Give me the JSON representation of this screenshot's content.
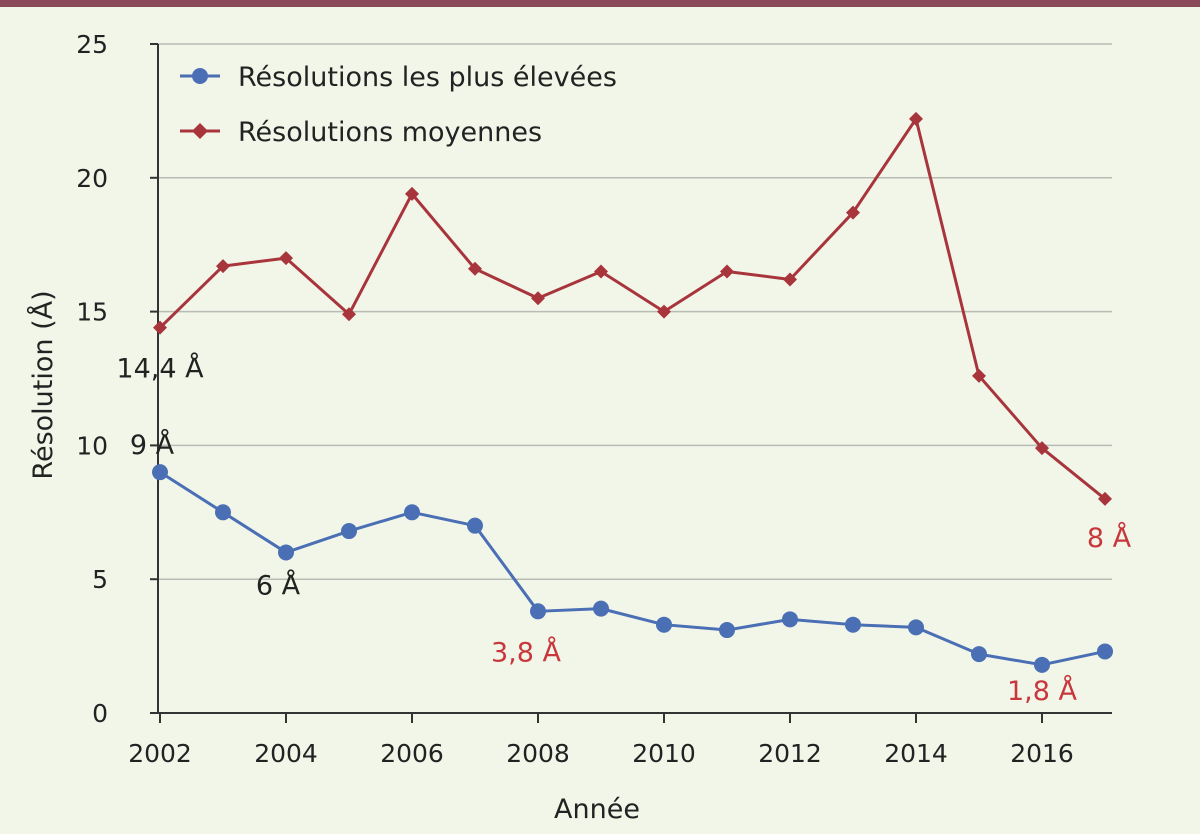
{
  "chart_data": {
    "type": "line",
    "xlabel": "Année",
    "ylabel": "Résolution (Å)",
    "x": [
      2002,
      2003,
      2004,
      2005,
      2006,
      2007,
      2008,
      2009,
      2010,
      2011,
      2012,
      2013,
      2014,
      2015,
      2016,
      2017
    ],
    "x_ticks": [
      "2002",
      "2004",
      "2006",
      "2008",
      "2010",
      "2012",
      "2014",
      "2016"
    ],
    "y_ticks": [
      "0",
      "5",
      "10",
      "15",
      "20",
      "25"
    ],
    "ylim": [
      0,
      25
    ],
    "grid": "horizontal",
    "legend_position": "top-left",
    "series": [
      {
        "name": "Résolutions les plus élevées",
        "marker": "circle",
        "color": "#4a6fb5",
        "values": [
          9.0,
          7.5,
          6.0,
          6.8,
          7.5,
          7.0,
          3.8,
          3.9,
          3.3,
          3.1,
          3.5,
          3.3,
          3.2,
          2.2,
          1.8,
          2.3
        ]
      },
      {
        "name": "Résolutions moyennes",
        "marker": "diamond",
        "color": "#a8353c",
        "values": [
          14.4,
          16.7,
          17.0,
          14.9,
          19.4,
          16.6,
          15.5,
          16.5,
          15.0,
          16.5,
          16.2,
          18.7,
          22.2,
          12.6,
          9.9,
          8.0
        ]
      }
    ],
    "annotations": [
      {
        "text": "14,4 Å",
        "x": 2002,
        "y": 14.4,
        "color": "#222222"
      },
      {
        "text": "9 Å",
        "x": 2002,
        "y": 9.0,
        "color": "#222222"
      },
      {
        "text": "6 Å",
        "x": 2004,
        "y": 6.0,
        "color": "#222222"
      },
      {
        "text": "3,8 Å",
        "x": 2008,
        "y": 3.8,
        "color": "#c8373c"
      },
      {
        "text": "1,8 Å",
        "x": 2016,
        "y": 1.8,
        "color": "#c8373c"
      },
      {
        "text": "8 Å",
        "x": 2017,
        "y": 8.0,
        "color": "#c8373c"
      }
    ]
  },
  "colors": {
    "background": "#f2f6e9",
    "top_bar": "#8b4a5a",
    "grid": "#b9bcb5",
    "axis": "#333333"
  }
}
